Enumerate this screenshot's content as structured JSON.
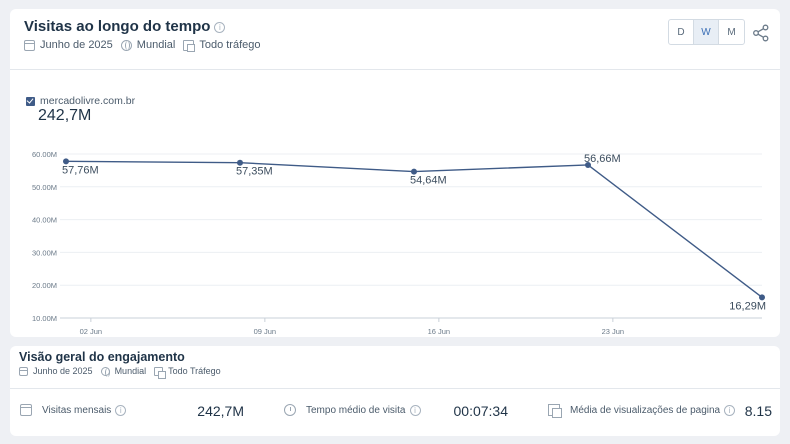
{
  "visits": {
    "title": "Visitas ao longo do tempo",
    "meta": {
      "period": "Junho de 2025",
      "region": "Mundial",
      "traffic": "Todo tráfego"
    },
    "granularity": [
      "D",
      "W",
      "M"
    ],
    "granularity_selected": "W",
    "legend": {
      "domain": "mercadolivre.com.br",
      "total": "242,7M",
      "color": "#3f5b87"
    }
  },
  "chart_data": {
    "type": "line",
    "x": [
      "2025-06-01",
      "2025-06-08",
      "2025-06-15",
      "2025-06-22",
      "2025-06-29"
    ],
    "series": [
      {
        "name": "mercadolivre.com.br",
        "values": [
          57.76,
          57.35,
          54.64,
          56.66,
          16.29
        ],
        "labels": [
          "57,76M",
          "57,35M",
          "54,64M",
          "56,66M",
          "16,29M"
        ]
      }
    ],
    "y_ticks": [
      "60.00M",
      "50.00M",
      "40.00M",
      "30.00M",
      "20.00M",
      "10.00M"
    ],
    "y_tick_values": [
      60,
      50,
      40,
      30,
      20,
      10
    ],
    "x_ticks": [
      "02 Jun",
      "09 Jun",
      "16 Jun",
      "23 Jun"
    ],
    "x_tick_values": [
      "2025-06-02",
      "2025-06-09",
      "2025-06-16",
      "2025-06-23"
    ],
    "ylim": [
      10,
      60
    ],
    "grid": true,
    "color": "#3f5b87"
  },
  "engagement": {
    "title": "Visão geral do engajamento",
    "meta": {
      "period": "Junho de 2025",
      "region": "Mundial",
      "traffic": "Todo Tráfego"
    },
    "metrics": [
      {
        "label": "Visitas mensais",
        "value": "242,7M"
      },
      {
        "label": "Tempo médio de visita",
        "value": "00:07:34"
      },
      {
        "label": "Média de visualizações de pagina",
        "value": "8.15"
      }
    ]
  }
}
